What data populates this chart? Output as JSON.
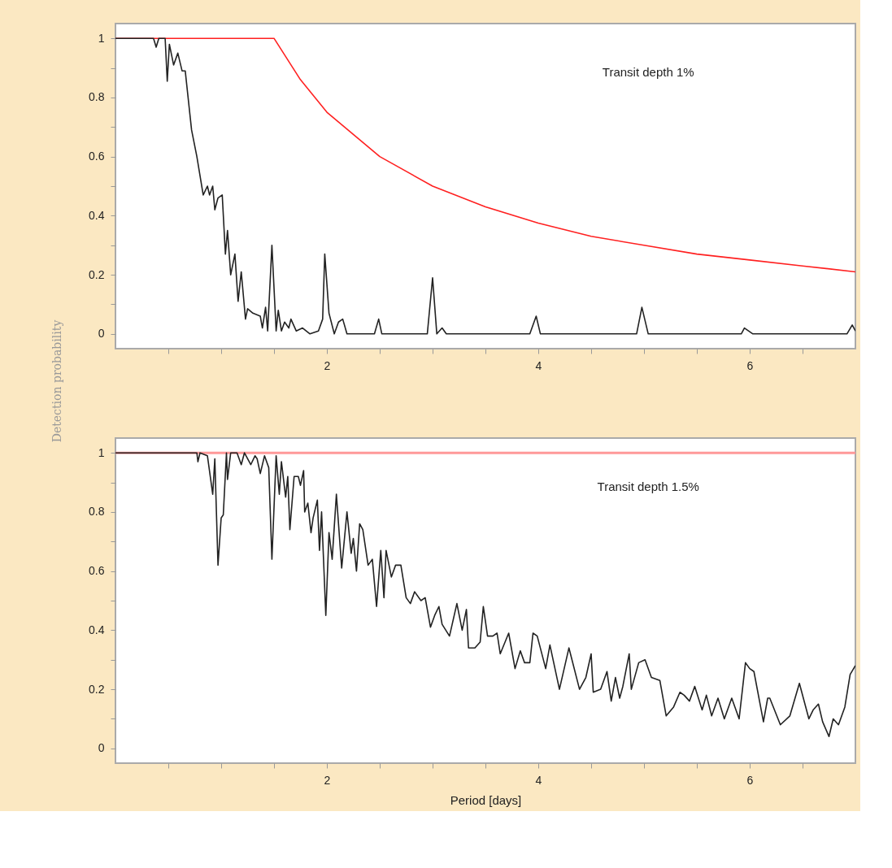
{
  "chart_data": [
    {
      "type": "line",
      "ylabel": "Detection probability",
      "annotations": [
        "Transit depth 1%"
      ],
      "grid": false,
      "xlim": [
        0,
        7
      ],
      "ylim": [
        -0.05,
        1.05
      ],
      "xticks": [
        {
          "value": 0.5,
          "label": null
        },
        {
          "value": 1,
          "label": null
        },
        {
          "value": 1.5,
          "label": null
        },
        2,
        {
          "value": 2.5,
          "label": null
        },
        {
          "value": 3,
          "label": null
        },
        {
          "value": 3.5,
          "label": null
        },
        4,
        {
          "value": 4.5,
          "label": null
        },
        {
          "value": 5,
          "label": null
        },
        {
          "value": 5.5,
          "label": null
        },
        6,
        {
          "value": 6.5,
          "label": null
        }
      ],
      "yticks": [
        0,
        {
          "value": 0.1,
          "label": null
        },
        0.2,
        {
          "value": 0.3,
          "label": null
        },
        0.4,
        {
          "value": 0.5,
          "label": null
        },
        0.6,
        {
          "value": 0.7,
          "label": null
        },
        0.8,
        {
          "value": 0.9,
          "label": null
        },
        1
      ],
      "series": [
        {
          "color": "#ff2020",
          "x": [
            0,
            1.5,
            1.75,
            2,
            2.5,
            3,
            3.5,
            4,
            4.5,
            5,
            5.5,
            6,
            6.5,
            7
          ],
          "values": [
            1,
            1,
            0.86,
            0.75,
            0.6,
            0.5,
            0.43,
            0.375,
            0.33,
            0.3,
            0.27,
            0.25,
            0.23,
            0.21
          ]
        },
        {
          "color": "#222222",
          "x": [
            0,
            0.36,
            0.385,
            0.41,
            0.47,
            0.49,
            0.51,
            0.55,
            0.59,
            0.63,
            0.66,
            0.72,
            0.77,
            0.83,
            0.87,
            0.89,
            0.92,
            0.94,
            0.97,
            1.01,
            1.04,
            1.06,
            1.09,
            1.13,
            1.16,
            1.19,
            1.23,
            1.25,
            1.3,
            1.37,
            1.39,
            1.42,
            1.44,
            1.48,
            1.52,
            1.54,
            1.57,
            1.6,
            1.64,
            1.66,
            1.71,
            1.77,
            1.84,
            1.92,
            1.96,
            1.98,
            2.02,
            2.07,
            2.11,
            2.15,
            2.19,
            2.45,
            2.49,
            2.52,
            2.95,
            3.0,
            3.04,
            3.09,
            3.13,
            3.92,
            3.98,
            4.02,
            4.93,
            4.98,
            5.04,
            5.92,
            5.95,
            6.03,
            6.92,
            6.97,
            7.0
          ],
          "values": [
            1,
            1,
            0.97,
            1,
            1,
            0.855,
            0.98,
            0.91,
            0.95,
            0.89,
            0.89,
            0.69,
            0.6,
            0.47,
            0.5,
            0.47,
            0.5,
            0.42,
            0.46,
            0.47,
            0.27,
            0.35,
            0.2,
            0.27,
            0.11,
            0.21,
            0.05,
            0.085,
            0.07,
            0.06,
            0.02,
            0.09,
            0.01,
            0.3,
            0.01,
            0.08,
            0.01,
            0.04,
            0.02,
            0.05,
            0.01,
            0.02,
            0,
            0.01,
            0.05,
            0.27,
            0.07,
            0,
            0.04,
            0.05,
            0,
            0,
            0.05,
            0,
            0,
            0.19,
            0,
            0.02,
            0,
            0,
            0.06,
            0,
            0,
            0.09,
            0,
            0,
            0.02,
            0,
            0,
            0.03,
            0.01
          ]
        }
      ]
    },
    {
      "type": "line",
      "xlabel": "Period [days]",
      "annotations": [
        "Transit depth 1.5%"
      ],
      "grid": false,
      "xlim": [
        0,
        7
      ],
      "ylim": [
        -0.05,
        1.05
      ],
      "xticks": [
        {
          "value": 0.5,
          "label": null
        },
        {
          "value": 1,
          "label": null
        },
        {
          "value": 1.5,
          "label": null
        },
        2,
        {
          "value": 2.5,
          "label": null
        },
        {
          "value": 3,
          "label": null
        },
        {
          "value": 3.5,
          "label": null
        },
        4,
        {
          "value": 4.5,
          "label": null
        },
        {
          "value": 5,
          "label": null
        },
        {
          "value": 5.5,
          "label": null
        },
        6,
        {
          "value": 6.5,
          "label": null
        }
      ],
      "yticks": [
        0,
        {
          "value": 0.1,
          "label": null
        },
        0.2,
        {
          "value": 0.3,
          "label": null
        },
        0.4,
        {
          "value": 0.5,
          "label": null
        },
        0.6,
        {
          "value": 0.7,
          "label": null
        },
        0.8,
        {
          "value": 0.9,
          "label": null
        },
        1
      ],
      "series": [
        {
          "color": "#ff9999",
          "x": [
            0,
            7
          ],
          "values": [
            1,
            1
          ]
        },
        {
          "color": "#222222",
          "x": [
            0,
            0.77,
            0.78,
            0.8,
            0.87,
            0.92,
            0.94,
            0.97,
            1.0,
            1.02,
            1.05,
            1.06,
            1.09,
            1.15,
            1.19,
            1.22,
            1.28,
            1.32,
            1.34,
            1.37,
            1.41,
            1.45,
            1.48,
            1.52,
            1.55,
            1.57,
            1.61,
            1.63,
            1.65,
            1.69,
            1.73,
            1.75,
            1.78,
            1.79,
            1.82,
            1.85,
            1.87,
            1.91,
            1.93,
            1.95,
            1.99,
            2.02,
            2.05,
            2.09,
            2.14,
            2.19,
            2.23,
            2.25,
            2.28,
            2.31,
            2.34,
            2.39,
            2.43,
            2.47,
            2.51,
            2.54,
            2.56,
            2.61,
            2.65,
            2.7,
            2.75,
            2.79,
            2.83,
            2.89,
            2.93,
            2.98,
            3.02,
            3.06,
            3.09,
            3.16,
            3.23,
            3.28,
            3.32,
            3.34,
            3.4,
            3.45,
            3.48,
            3.52,
            3.57,
            3.61,
            3.64,
            3.72,
            3.78,
            3.83,
            3.87,
            3.92,
            3.95,
            3.99,
            4.07,
            4.11,
            4.2,
            4.29,
            4.39,
            4.45,
            4.5,
            4.52,
            4.59,
            4.65,
            4.69,
            4.73,
            4.77,
            4.8,
            4.86,
            4.88,
            4.95,
            5.01,
            5.07,
            5.15,
            5.21,
            5.28,
            5.34,
            5.38,
            5.43,
            5.48,
            5.55,
            5.59,
            5.64,
            5.7,
            5.76,
            5.83,
            5.9,
            5.96,
            6.0,
            6.04,
            6.13,
            6.17,
            6.19,
            6.29,
            6.38,
            6.47,
            6.56,
            6.6,
            6.65,
            6.69,
            6.75,
            6.79,
            6.84,
            6.9,
            6.95,
            7.0
          ],
          "values": [
            1,
            1,
            0.97,
            1,
            0.99,
            0.86,
            0.98,
            0.62,
            0.78,
            0.79,
            1,
            0.91,
            1,
            1,
            0.96,
            1,
            0.96,
            0.99,
            0.98,
            0.93,
            0.99,
            0.95,
            0.64,
            0.99,
            0.86,
            0.97,
            0.85,
            0.92,
            0.74,
            0.92,
            0.92,
            0.89,
            0.94,
            0.8,
            0.83,
            0.73,
            0.78,
            0.84,
            0.67,
            0.8,
            0.45,
            0.73,
            0.64,
            0.86,
            0.61,
            0.8,
            0.66,
            0.71,
            0.6,
            0.76,
            0.74,
            0.62,
            0.64,
            0.48,
            0.67,
            0.51,
            0.67,
            0.58,
            0.62,
            0.62,
            0.51,
            0.49,
            0.53,
            0.5,
            0.51,
            0.41,
            0.45,
            0.48,
            0.42,
            0.38,
            0.49,
            0.4,
            0.47,
            0.34,
            0.34,
            0.36,
            0.48,
            0.38,
            0.38,
            0.39,
            0.32,
            0.39,
            0.27,
            0.33,
            0.29,
            0.29,
            0.39,
            0.38,
            0.27,
            0.35,
            0.2,
            0.34,
            0.2,
            0.24,
            0.32,
            0.19,
            0.2,
            0.26,
            0.16,
            0.24,
            0.17,
            0.21,
            0.32,
            0.2,
            0.29,
            0.3,
            0.24,
            0.23,
            0.11,
            0.14,
            0.19,
            0.18,
            0.16,
            0.21,
            0.13,
            0.18,
            0.11,
            0.17,
            0.1,
            0.17,
            0.1,
            0.29,
            0.27,
            0.26,
            0.09,
            0.17,
            0.17,
            0.08,
            0.11,
            0.22,
            0.1,
            0.13,
            0.15,
            0.09,
            0.04,
            0.1,
            0.08,
            0.14,
            0.25,
            0.28
          ]
        }
      ]
    }
  ]
}
